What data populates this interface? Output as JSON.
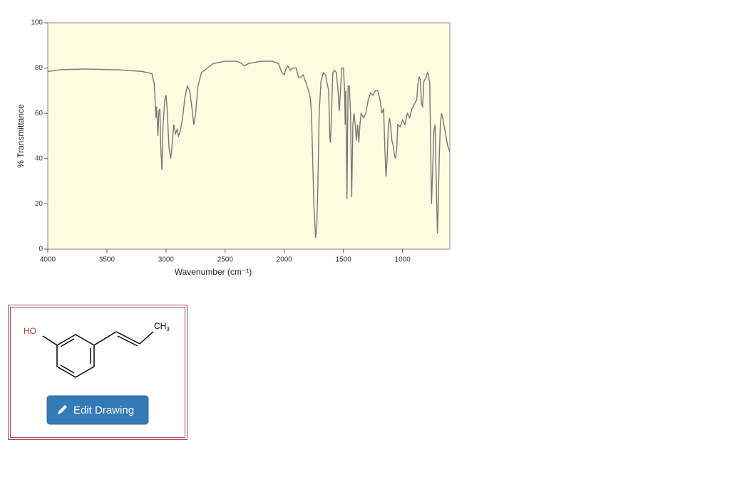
{
  "chart_data": {
    "type": "line",
    "x_label": "Wavenumber (cm⁻¹)",
    "y_label": "% Transmittance",
    "color": "#777777",
    "background": "#fdfbe0",
    "xlim": [
      4000,
      600
    ],
    "ylim": [
      0,
      100
    ],
    "xticks": [
      4000,
      3500,
      3000,
      2500,
      2000,
      1500,
      1000
    ],
    "yticks": [
      0,
      20,
      40,
      60,
      80,
      100
    ],
    "x": [
      4000,
      3900,
      3700,
      3400,
      3200,
      3120,
      3100,
      3090,
      3085,
      3080,
      3075,
      3068,
      3060,
      3052,
      3045,
      3035,
      3025,
      3010,
      3000,
      2990,
      2975,
      2960,
      2945,
      2935,
      2920,
      2905,
      2895,
      2880,
      2860,
      2840,
      2820,
      2800,
      2780,
      2765,
      2750,
      2730,
      2700,
      2650,
      2600,
      2500,
      2400,
      2360,
      2340,
      2300,
      2200,
      2100,
      2050,
      2020,
      2000,
      1990,
      1970,
      1950,
      1930,
      1900,
      1880,
      1860,
      1840,
      1820,
      1800,
      1780,
      1770,
      1760,
      1750,
      1740,
      1735,
      1725,
      1715,
      1705,
      1690,
      1670,
      1650,
      1640,
      1625,
      1615,
      1610,
      1600,
      1590,
      1575,
      1560,
      1545,
      1535,
      1525,
      1515,
      1500,
      1490,
      1485,
      1480,
      1475,
      1470,
      1465,
      1460,
      1450,
      1440,
      1430,
      1420,
      1410,
      1400,
      1390,
      1380,
      1370,
      1360,
      1350,
      1330,
      1310,
      1290,
      1270,
      1250,
      1230,
      1210,
      1190,
      1175,
      1160,
      1150,
      1140,
      1130,
      1120,
      1110,
      1100,
      1090,
      1080,
      1070,
      1060,
      1050,
      1040,
      1020,
      1000,
      980,
      960,
      940,
      920,
      900,
      880,
      870,
      860,
      850,
      840,
      830,
      820,
      800,
      790,
      780,
      770,
      760,
      755,
      745,
      735,
      725,
      715,
      705,
      700,
      690,
      680,
      670,
      660,
      640,
      620,
      600
    ],
    "values": [
      78.5,
      79.2,
      79.6,
      79.2,
      78.5,
      77.5,
      73,
      63,
      58,
      63,
      58,
      50,
      61,
      62,
      46,
      35,
      55,
      66,
      68,
      62,
      45,
      40,
      48,
      55,
      51,
      53,
      50,
      52,
      58,
      67,
      72,
      70,
      62,
      55,
      60,
      72,
      78,
      80,
      82,
      83,
      83,
      82,
      81,
      82,
      83,
      83,
      82,
      78,
      77,
      79,
      81,
      79,
      80,
      80,
      76,
      76,
      77,
      74,
      71,
      67,
      60,
      40,
      20,
      10,
      5,
      10,
      30,
      60,
      74,
      78,
      77,
      74,
      70,
      50,
      47,
      60,
      78,
      79,
      78,
      70,
      61,
      70,
      80,
      80,
      70,
      55,
      70,
      45,
      22,
      50,
      72,
      72,
      60,
      23,
      55,
      60,
      55,
      48,
      55,
      47,
      55,
      60,
      58,
      60,
      66,
      69,
      68,
      70,
      70,
      66,
      60,
      62,
      45,
      32,
      40,
      54,
      58,
      54,
      48,
      46,
      42,
      40,
      44,
      55,
      54,
      57,
      55,
      60,
      58,
      62,
      64,
      66,
      73,
      76,
      75,
      64,
      63,
      74,
      76,
      78,
      77,
      73,
      38,
      20,
      35,
      52,
      55,
      30,
      7,
      15,
      40,
      55,
      60,
      58,
      52,
      46,
      43
    ]
  },
  "molecule": {
    "substituent_left": "HO",
    "substituent_right": "CH",
    "substituent_right_sub": "3"
  },
  "button": {
    "label": "Edit Drawing"
  }
}
